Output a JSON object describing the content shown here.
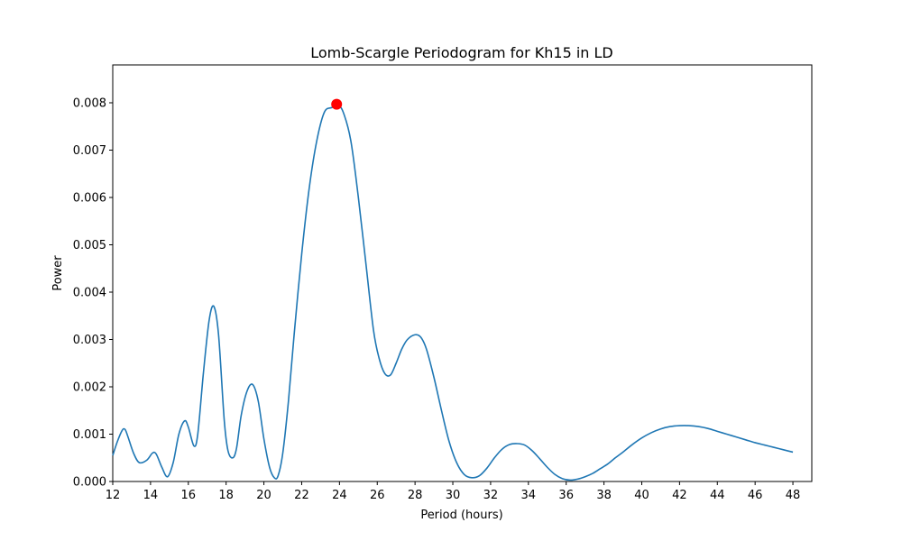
{
  "chart_data": {
    "type": "line",
    "title": "Lomb-Scargle Periodogram for Kh15 in LD",
    "xlabel": "Period (hours)",
    "ylabel": "Power",
    "xlim": [
      12,
      49
    ],
    "ylim": [
      0,
      0.0088
    ],
    "xticks": [
      12,
      14,
      16,
      18,
      20,
      22,
      24,
      26,
      28,
      30,
      32,
      34,
      36,
      38,
      40,
      42,
      44,
      46,
      48
    ],
    "xtick_labels": [
      "12",
      "14",
      "16",
      "18",
      "20",
      "22",
      "24",
      "26",
      "28",
      "30",
      "32",
      "34",
      "36",
      "38",
      "40",
      "42",
      "44",
      "46",
      "48"
    ],
    "yticks": [
      0,
      0.001,
      0.002,
      0.003,
      0.004,
      0.005,
      0.006,
      0.007,
      0.008
    ],
    "ytick_labels": [
      "0.000",
      "0.001",
      "0.002",
      "0.003",
      "0.004",
      "0.005",
      "0.006",
      "0.007",
      "0.008"
    ],
    "grid": false,
    "series": [
      {
        "color": "#1f77b4",
        "x": [
          12.0,
          12.25,
          12.5,
          12.65,
          12.8,
          13.1,
          13.4,
          13.8,
          14.1,
          14.3,
          14.6,
          14.9,
          15.2,
          15.5,
          15.8,
          16.0,
          16.3,
          16.5,
          16.8,
          17.1,
          17.35,
          17.6,
          17.9,
          18.1,
          18.35,
          18.55,
          18.8,
          19.1,
          19.4,
          19.7,
          20.0,
          20.3,
          20.55,
          20.75,
          21.0,
          21.3,
          21.6,
          22.0,
          22.4,
          22.8,
          23.2,
          23.6,
          23.9,
          24.2,
          24.6,
          25.0,
          25.4,
          25.8,
          26.1,
          26.4,
          26.7,
          27.0,
          27.3,
          27.6,
          28.0,
          28.3,
          28.6,
          29.0,
          29.4,
          29.8,
          30.2,
          30.6,
          31.0,
          31.4,
          31.8,
          32.2,
          32.6,
          33.0,
          33.4,
          33.8,
          34.2,
          34.6,
          35.0,
          35.4,
          35.8,
          36.2,
          36.6,
          37.0,
          37.4,
          37.8,
          38.2,
          38.6,
          39.0,
          39.5,
          40.0,
          40.5,
          41.0,
          41.5,
          42.0,
          42.5,
          43.0,
          43.5,
          44.0,
          44.5,
          45.0,
          45.5,
          46.0,
          46.5,
          47.0,
          47.5,
          48.0
        ],
        "y": [
          0.00055,
          0.00085,
          0.00108,
          0.0011,
          0.00095,
          0.0006,
          0.0004,
          0.00045,
          0.0006,
          0.00058,
          0.0003,
          0.0001,
          0.0004,
          0.001,
          0.00128,
          0.00115,
          0.00075,
          0.001,
          0.0023,
          0.0034,
          0.0037,
          0.0031,
          0.0013,
          0.00065,
          0.0005,
          0.0007,
          0.0014,
          0.0019,
          0.00205,
          0.0017,
          0.0009,
          0.0003,
          8e-05,
          0.00012,
          0.0006,
          0.0017,
          0.0031,
          0.0048,
          0.0062,
          0.0072,
          0.0078,
          0.0079,
          0.00795,
          0.0078,
          0.0072,
          0.006,
          0.0046,
          0.0032,
          0.0026,
          0.00228,
          0.00225,
          0.0025,
          0.0028,
          0.003,
          0.0031,
          0.00305,
          0.0028,
          0.0022,
          0.0015,
          0.00085,
          0.0004,
          0.00015,
          8e-05,
          0.00012,
          0.00028,
          0.0005,
          0.00068,
          0.00078,
          0.0008,
          0.00077,
          0.00065,
          0.00048,
          0.0003,
          0.00015,
          6e-05,
          3e-05,
          5e-05,
          0.0001,
          0.00017,
          0.00027,
          0.00037,
          0.0005,
          0.00062,
          0.00078,
          0.00092,
          0.00103,
          0.00111,
          0.00116,
          0.00118,
          0.00118,
          0.00116,
          0.00112,
          0.00106,
          0.001,
          0.00094,
          0.00088,
          0.00082,
          0.00077,
          0.00072,
          0.00067,
          0.00062
        ]
      }
    ],
    "peak": {
      "x": 23.85,
      "y": 0.00797,
      "color": "#ff0000"
    }
  }
}
